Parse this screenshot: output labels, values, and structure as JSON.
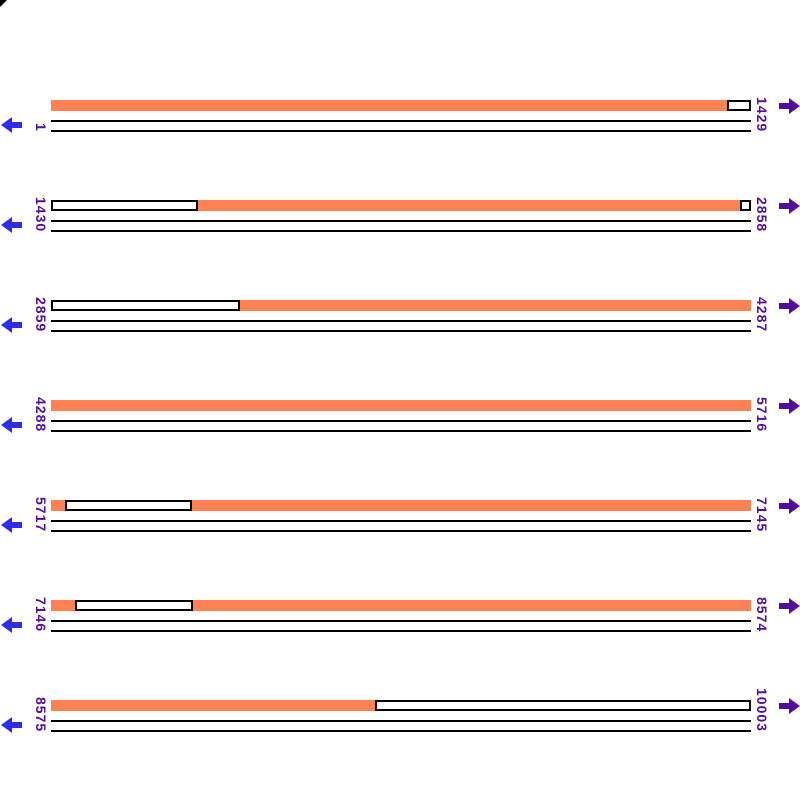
{
  "colors": {
    "bar": "#FF8154",
    "left_arrow": "#2D2DE9",
    "right_arrow": "#530D9C",
    "label": "#530D9C",
    "line": "#000000"
  },
  "icons": {
    "left": "left-arrow-icon",
    "right": "right-arrow-icon",
    "corner": "corner-artifact"
  },
  "rows": [
    {
      "start_label": "1",
      "end_label": "1429",
      "segments": [
        {
          "state": "covered",
          "from": 0,
          "to": 676
        },
        {
          "state": "uncovered",
          "from": 676,
          "to": 700
        }
      ]
    },
    {
      "start_label": "1430",
      "end_label": "2858",
      "segments": [
        {
          "state": "uncovered",
          "from": 0,
          "to": 147
        },
        {
          "state": "covered",
          "from": 147,
          "to": 689
        },
        {
          "state": "uncovered",
          "from": 689,
          "to": 700
        }
      ]
    },
    {
      "start_label": "2859",
      "end_label": "4287",
      "segments": [
        {
          "state": "uncovered",
          "from": 0,
          "to": 189
        },
        {
          "state": "covered",
          "from": 189,
          "to": 700
        }
      ]
    },
    {
      "start_label": "4288",
      "end_label": "5716",
      "segments": [
        {
          "state": "covered",
          "from": 0,
          "to": 700
        }
      ]
    },
    {
      "start_label": "5717",
      "end_label": "7145",
      "segments": [
        {
          "state": "covered",
          "from": 0,
          "to": 14
        },
        {
          "state": "uncovered",
          "from": 14,
          "to": 141
        },
        {
          "state": "covered",
          "from": 141,
          "to": 700
        }
      ]
    },
    {
      "start_label": "7146",
      "end_label": "8574",
      "segments": [
        {
          "state": "covered",
          "from": 0,
          "to": 24
        },
        {
          "state": "uncovered",
          "from": 24,
          "to": 142
        },
        {
          "state": "covered",
          "from": 142,
          "to": 700
        }
      ]
    },
    {
      "start_label": "8575",
      "end_label": "10003",
      "segments": [
        {
          "state": "covered",
          "from": 0,
          "to": 324
        },
        {
          "state": "uncovered",
          "from": 324,
          "to": 700
        }
      ]
    }
  ],
  "chart_data": {
    "type": "coverage-map",
    "x_unit": "sequence position (bp)",
    "total_range": [
      1,
      10003
    ],
    "row_span_bp": 1429,
    "rows": [
      {
        "range": [
          1,
          1429
        ],
        "covered_bp": [
          [
            1,
            1381
          ]
        ]
      },
      {
        "range": [
          1430,
          2858
        ],
        "covered_bp": [
          [
            1730,
            2836
          ]
        ]
      },
      {
        "range": [
          2859,
          4287
        ],
        "covered_bp": [
          [
            3245,
            4287
          ]
        ]
      },
      {
        "range": [
          4288,
          5716
        ],
        "covered_bp": [
          [
            4288,
            5716
          ]
        ]
      },
      {
        "range": [
          5717,
          7145
        ],
        "covered_bp": [
          [
            5717,
            5746
          ],
          [
            6005,
            7145
          ]
        ]
      },
      {
        "range": [
          7146,
          8574
        ],
        "covered_bp": [
          [
            7146,
            7195
          ],
          [
            7436,
            8574
          ]
        ]
      },
      {
        "range": [
          8575,
          10003
        ],
        "covered_bp": [
          [
            8575,
            9236
          ]
        ]
      }
    ]
  }
}
